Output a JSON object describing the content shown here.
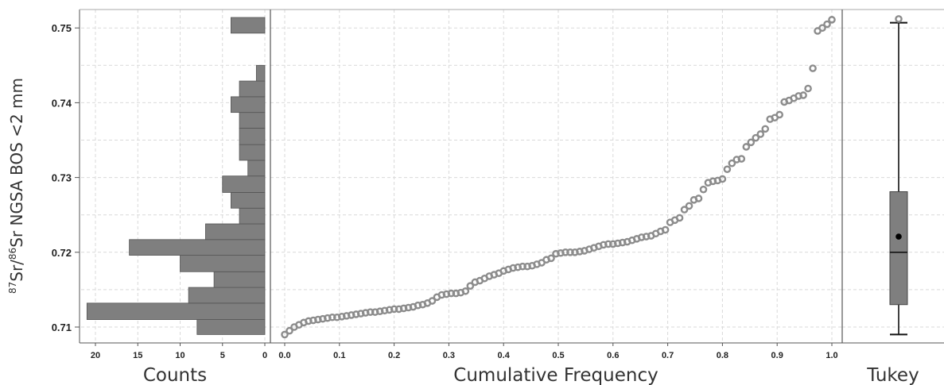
{
  "colors": {
    "bar_fill": "#7f7f7f",
    "point_stroke": "#8c8c8c",
    "box_fill": "#7f7f7f",
    "axis": "#555555",
    "grid": "#d9d9d9"
  },
  "chart_data": [
    {
      "type": "bar",
      "orientation": "horizontal",
      "panel_label": "Counts",
      "ylabel_prefix_sup": "87",
      "ylabel_mid": "Sr/",
      "ylabel_mid_sup": "86",
      "ylabel_rest": "Sr NGSA BOS <2 mm",
      "ylim": [
        0.709,
        0.7525
      ],
      "xlim": [
        21.5,
        0
      ],
      "y_ticks": [
        "0.71",
        "0.72",
        "0.73",
        "0.74",
        "0.75"
      ],
      "x_ticks": [
        "20",
        "15",
        "10",
        "5",
        "0"
      ],
      "bins": [
        {
          "lo": 0.709,
          "hi": 0.711,
          "count": 8
        },
        {
          "lo": 0.711,
          "hi": 0.7132,
          "count": 21
        },
        {
          "lo": 0.7132,
          "hi": 0.7153,
          "count": 9
        },
        {
          "lo": 0.7153,
          "hi": 0.7174,
          "count": 6
        },
        {
          "lo": 0.7174,
          "hi": 0.7196,
          "count": 10
        },
        {
          "lo": 0.7196,
          "hi": 0.7217,
          "count": 16
        },
        {
          "lo": 0.7217,
          "hi": 0.7238,
          "count": 7
        },
        {
          "lo": 0.7238,
          "hi": 0.7259,
          "count": 3
        },
        {
          "lo": 0.7259,
          "hi": 0.728,
          "count": 4
        },
        {
          "lo": 0.728,
          "hi": 0.7302,
          "count": 5
        },
        {
          "lo": 0.7302,
          "hi": 0.7323,
          "count": 2
        },
        {
          "lo": 0.7323,
          "hi": 0.7344,
          "count": 3
        },
        {
          "lo": 0.7344,
          "hi": 0.7366,
          "count": 3
        },
        {
          "lo": 0.7366,
          "hi": 0.7387,
          "count": 3
        },
        {
          "lo": 0.7387,
          "hi": 0.7408,
          "count": 4
        },
        {
          "lo": 0.7408,
          "hi": 0.7429,
          "count": 3
        },
        {
          "lo": 0.7429,
          "hi": 0.745,
          "count": 1
        },
        {
          "lo": 0.7493,
          "hi": 0.7514,
          "count": 4
        }
      ]
    },
    {
      "type": "scatter",
      "panel_label": "Cumulative Frequency",
      "xlim": [
        0,
        1.0
      ],
      "x_ticks": [
        "0.0",
        "0.1",
        "0.2",
        "0.3",
        "0.4",
        "0.5",
        "0.6",
        "0.7",
        "0.8",
        "0.9",
        "1.0"
      ],
      "values": [
        0.709,
        0.7095,
        0.71,
        0.7103,
        0.7106,
        0.7108,
        0.7109,
        0.711,
        0.7111,
        0.7112,
        0.7113,
        0.7113,
        0.7114,
        0.7115,
        0.7116,
        0.7117,
        0.7118,
        0.7119,
        0.712,
        0.712,
        0.7121,
        0.7122,
        0.7123,
        0.7124,
        0.7124,
        0.7125,
        0.7126,
        0.7127,
        0.7129,
        0.713,
        0.7132,
        0.7135,
        0.714,
        0.7143,
        0.7144,
        0.7145,
        0.7145,
        0.7146,
        0.7148,
        0.7155,
        0.716,
        0.7162,
        0.7165,
        0.7168,
        0.717,
        0.7172,
        0.7175,
        0.7177,
        0.7179,
        0.718,
        0.7181,
        0.7181,
        0.7182,
        0.7184,
        0.7186,
        0.719,
        0.7192,
        0.7198,
        0.7199,
        0.72,
        0.72,
        0.72,
        0.7201,
        0.7202,
        0.7204,
        0.7206,
        0.7208,
        0.721,
        0.7211,
        0.7211,
        0.7212,
        0.7213,
        0.7214,
        0.7216,
        0.7218,
        0.722,
        0.7221,
        0.7222,
        0.7225,
        0.7228,
        0.723,
        0.724,
        0.7243,
        0.7246,
        0.7257,
        0.7262,
        0.727,
        0.7272,
        0.7284,
        0.7293,
        0.7295,
        0.7296,
        0.7298,
        0.7311,
        0.7319,
        0.7324,
        0.7325,
        0.7341,
        0.7347,
        0.7353,
        0.7358,
        0.7365,
        0.7378,
        0.738,
        0.7384,
        0.7401,
        0.7403,
        0.7406,
        0.7409,
        0.741,
        0.7419,
        0.7446,
        0.7496,
        0.75,
        0.7505,
        0.7511
      ]
    },
    {
      "type": "box",
      "panel_label": "Tukey",
      "whisker_low": 0.709,
      "q1": 0.713,
      "median": 0.72,
      "q3": 0.7281,
      "whisker_high": 0.7507,
      "mean": 0.7221,
      "outliers": [
        0.7512
      ]
    }
  ]
}
